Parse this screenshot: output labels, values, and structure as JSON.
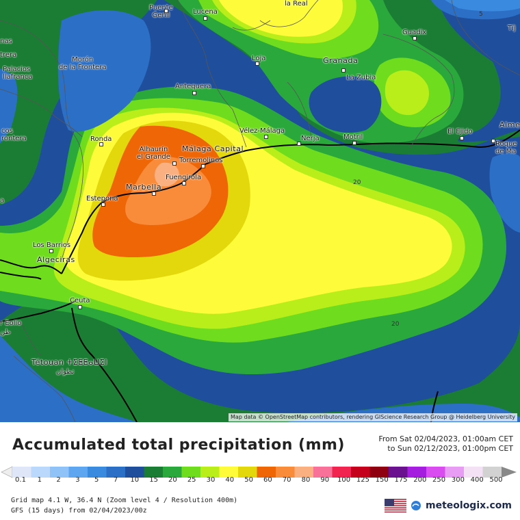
{
  "map": {
    "attribution": "Map data © OpenStreetMap contributors, rendering GIScience Research Group @ Heidelberg University",
    "places": [
      {
        "name": "Puente\nGenil",
        "big": false
      },
      {
        "name": "Lucena",
        "big": false
      },
      {
        "name": "la Real",
        "big": false
      },
      {
        "name": "Guadix",
        "big": false
      },
      {
        "name": "Tíj",
        "big": false
      },
      {
        "name": "nas",
        "big": false
      },
      {
        "name": "trera",
        "big": false
      },
      {
        "name": "Morón\nde la Frontera",
        "big": false
      },
      {
        "name": "Palacios\nllafranca",
        "big": false
      },
      {
        "name": "Loja",
        "big": false
      },
      {
        "name": "Granada",
        "big": true
      },
      {
        "name": "La Zubia",
        "big": false
      },
      {
        "name": "Antequera",
        "big": false
      },
      {
        "name": "cos\nrontera",
        "big": false
      },
      {
        "name": "Ronda",
        "big": false
      },
      {
        "name": "Vélez-Málaga",
        "big": false
      },
      {
        "name": "Nerja",
        "big": false
      },
      {
        "name": "Motril",
        "big": false
      },
      {
        "name": "El Ejido",
        "big": false
      },
      {
        "name": "Alme",
        "big": true
      },
      {
        "name": "Roque\nde Ma",
        "big": false
      },
      {
        "name": "Alhaurín\nel Grande",
        "big": false
      },
      {
        "name": "Málaga Capital",
        "big": true
      },
      {
        "name": "Torremolinos",
        "big": false
      },
      {
        "name": "Fuengirola",
        "big": false
      },
      {
        "name": "Marbella",
        "big": true
      },
      {
        "name": "Estepona",
        "big": false
      },
      {
        "name": "Los Barrios",
        "big": false
      },
      {
        "name": "Algeciras",
        "big": true
      },
      {
        "name": "Ceuta",
        "big": false
      },
      {
        "name": "r Eolio",
        "big": false
      },
      {
        "name": "طن",
        "big": false
      },
      {
        "name": "Tétouan ⵜⵉⵟⵟⴰⵡⵉⵏ",
        "big": true
      },
      {
        "name": "تطوان",
        "big": false
      },
      {
        "name": "a",
        "big": false
      }
    ],
    "contour_labels": [
      "20",
      "20",
      "5"
    ]
  },
  "title": "Accumulated total precipitation (mm)",
  "period": {
    "from": "From Sat 02/04/2023, 01:00am CET",
    "to": "to Sun 02/12/2023, 01:00pm CET"
  },
  "legend": {
    "values": [
      "0.1",
      "1",
      "2",
      "3",
      "5",
      "7",
      "10",
      "15",
      "20",
      "25",
      "30",
      "40",
      "50",
      "60",
      "70",
      "80",
      "90",
      "100",
      "125",
      "150",
      "175",
      "200",
      "250",
      "300",
      "400",
      "500"
    ],
    "colors": [
      "#dfe6f7",
      "#b9d8fb",
      "#8fc2f7",
      "#5ea6f0",
      "#3a8ae0",
      "#2b6fc6",
      "#1f4f9c",
      "#1b7d34",
      "#2aa83c",
      "#6fdd1e",
      "#b9ee1a",
      "#fdfb3a",
      "#e3d80c",
      "#ef6606",
      "#f98c3a",
      "#fbb081",
      "#f77198",
      "#f1234f",
      "#c4001d",
      "#8e0010",
      "#6a1190",
      "#a51ee0",
      "#d84cf0",
      "#e89cf3",
      "#f5e1f5",
      "#d2d2d2"
    ]
  },
  "meta": {
    "line1": "Grid map 4.1 W, 36.4 N (Zoom level 4 / Resolution 400m)",
    "line2": "GFS (15 days) from  02/04/2023/00z"
  },
  "brand": {
    "logo_text": "meteologix.com",
    "flag_icon": "us-flag-icon"
  }
}
